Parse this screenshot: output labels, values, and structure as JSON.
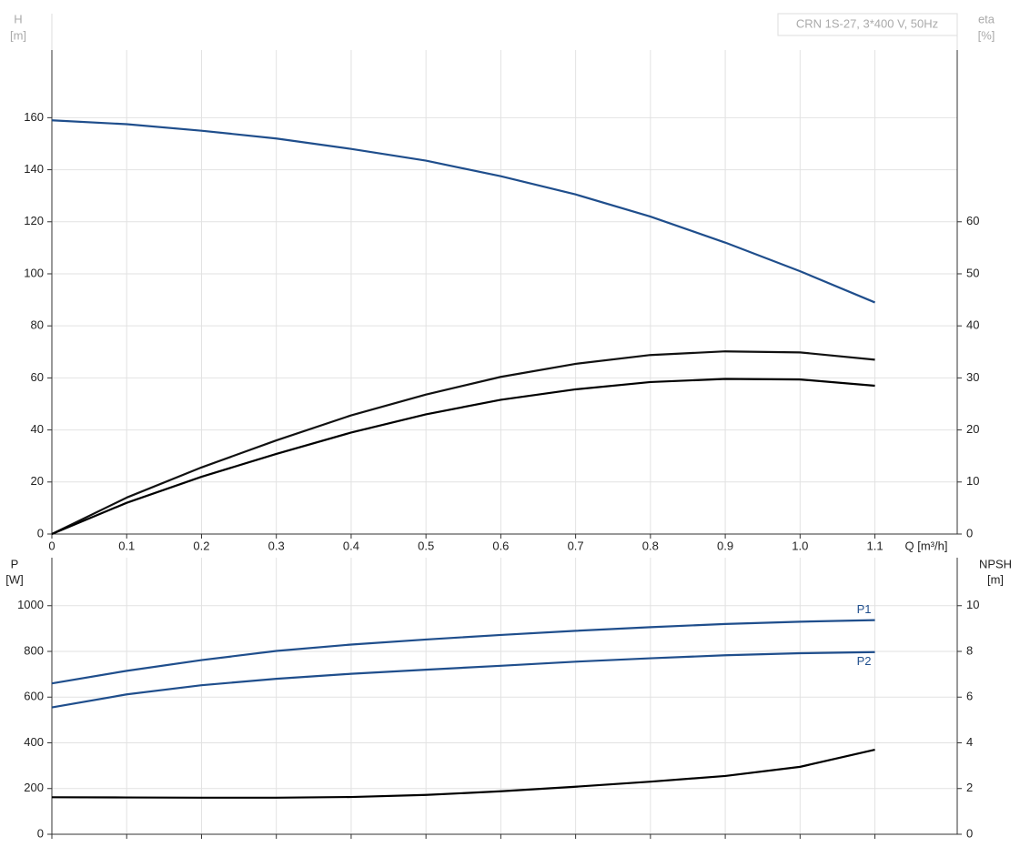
{
  "chart_data": [
    {
      "type": "line",
      "title": "CRN 1S-27, 3*400 V, 50Hz",
      "xlabel": "Q [m³/h]",
      "ylabel": "H",
      "yunit": "[m]",
      "y2label": "eta",
      "y2unit": "[%]",
      "x": [
        0,
        0.1,
        0.2,
        0.3,
        0.4,
        0.5,
        0.6,
        0.7,
        0.8,
        0.9,
        1.0,
        1.1
      ],
      "xlim": [
        0,
        1.21
      ],
      "xticks": [
        0,
        0.1,
        0.2,
        0.3,
        0.4,
        0.5,
        0.6,
        0.7,
        0.8,
        0.9,
        {
          "value": 1,
          "label": "1.0"
        },
        1.1
      ],
      "ylim": [
        0,
        186
      ],
      "yticks": [
        0,
        20,
        40,
        60,
        80,
        100,
        120,
        140,
        160
      ],
      "y2lim": [
        0,
        93
      ],
      "y2ticks": [
        0,
        10,
        20,
        30,
        40,
        50,
        60
      ],
      "grid": true,
      "series": [
        {
          "color": "#1f4e8c",
          "values": [
            159,
            157.5,
            155,
            152,
            148,
            143.5,
            137.5,
            130.5,
            122,
            112,
            101,
            89
          ]
        },
        {
          "color": "#111111",
          "axis": "y2",
          "values": [
            0,
            7,
            12.8,
            18,
            22.8,
            26.8,
            30.2,
            32.7,
            34.4,
            35.1,
            34.9,
            33.5
          ]
        },
        {
          "color": "#000000",
          "axis": "y2",
          "values": [
            0,
            6,
            11,
            15.4,
            19.5,
            23,
            25.8,
            27.8,
            29.2,
            29.8,
            29.7,
            28.5
          ]
        }
      ]
    },
    {
      "type": "line",
      "ylabel": "P",
      "yunit": "[W]",
      "y2label": "NPSH",
      "y2unit": "[m]",
      "x": [
        0,
        0.1,
        0.2,
        0.3,
        0.4,
        0.5,
        0.6,
        0.7,
        0.8,
        0.9,
        1.0,
        1.1
      ],
      "xlim": [
        0,
        1.21
      ],
      "xticks": [
        0,
        0.1,
        0.2,
        0.3,
        0.4,
        0.5,
        0.6,
        0.7,
        0.8,
        0.9,
        1,
        1.1
      ],
      "ylim": [
        0,
        1210
      ],
      "yticks": [
        0,
        200,
        400,
        600,
        800,
        1000
      ],
      "y2lim": [
        0,
        12.1
      ],
      "y2ticks": [
        0,
        2,
        4,
        6,
        8,
        10
      ],
      "grid": true,
      "series": [
        {
          "name": "P1",
          "color": "#1f4e8c",
          "values": [
            660,
            715,
            762,
            802,
            830,
            852,
            872,
            890,
            906,
            920,
            930,
            937
          ]
        },
        {
          "name": "P2",
          "color": "#1f4e8c",
          "values": [
            555,
            612,
            652,
            680,
            702,
            720,
            737,
            755,
            770,
            783,
            792,
            797
          ]
        },
        {
          "color": "#000000",
          "axis": "y2",
          "values": [
            1.62,
            1.61,
            1.6,
            1.6,
            1.63,
            1.72,
            1.88,
            2.08,
            2.3,
            2.55,
            2.95,
            3.7
          ]
        }
      ]
    }
  ]
}
